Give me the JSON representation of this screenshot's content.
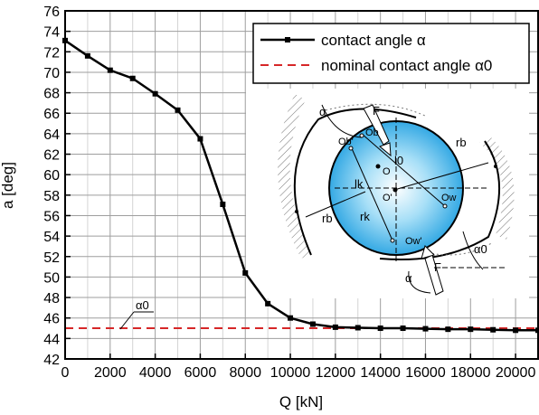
{
  "chart_data": {
    "type": "line",
    "xlabel": "Q [kN]",
    "ylabel": "a [deg]",
    "xlim": [
      0,
      21000
    ],
    "ylim": [
      42,
      76
    ],
    "x_ticks": [
      0,
      2000,
      4000,
      6000,
      8000,
      10000,
      12000,
      14000,
      16000,
      18000,
      20000
    ],
    "y_ticks": [
      42,
      44,
      46,
      48,
      50,
      52,
      54,
      56,
      58,
      60,
      62,
      64,
      66,
      68,
      70,
      72,
      74,
      76
    ],
    "x_tick_labels": [
      "0",
      "2000",
      "4000",
      "6000",
      "8000",
      "10000",
      "12000",
      "14000",
      "16000",
      "18000",
      "20000"
    ],
    "y_tick_labels": [
      "42",
      "44",
      "46",
      "48",
      "50",
      "52",
      "54",
      "56",
      "58",
      "60",
      "62",
      "64",
      "66",
      "68",
      "70",
      "72",
      "74",
      "76"
    ],
    "grid": true,
    "legend_position": "top-right",
    "series": [
      {
        "name": "contact angle α",
        "color": "#000000",
        "style": "solid-with-square-markers",
        "x": [
          0,
          1000,
          2000,
          3000,
          4000,
          5000,
          6000,
          7000,
          8000,
          9000,
          10000,
          11000,
          12000,
          13000,
          14000,
          15000,
          16000,
          17000,
          18000,
          19000,
          20000,
          21000
        ],
        "y": [
          73.1,
          71.6,
          70.2,
          69.4,
          67.9,
          66.3,
          63.5,
          57.1,
          50.4,
          47.4,
          46.0,
          45.4,
          45.1,
          45.05,
          45.0,
          45.0,
          44.95,
          44.9,
          44.9,
          44.85,
          44.8,
          44.8
        ]
      },
      {
        "name": "nominal contact angle α0",
        "color": "#d62728",
        "style": "dashed",
        "x": [
          0,
          21000
        ],
        "y": [
          45,
          45
        ]
      }
    ],
    "annotations": [
      {
        "text": "α0",
        "x": 2400,
        "y": 45
      }
    ],
    "inset_diagram": {
      "labels": {
        "F_top": "F",
        "F_bottom": "F",
        "alpha_top": "α",
        "alpha_bottom": "α",
        "alpha0": "α0",
        "rb_right": "rb",
        "rb_left": "rb",
        "rk": "rk",
        "l0": "l0",
        "lk": "lk",
        "O": "O",
        "O_prime": "O'",
        "Ob": "Ob",
        "Ow": "Ow",
        "Ow_prime": "Ow'",
        "Ob_prime": "Ob'"
      }
    }
  }
}
